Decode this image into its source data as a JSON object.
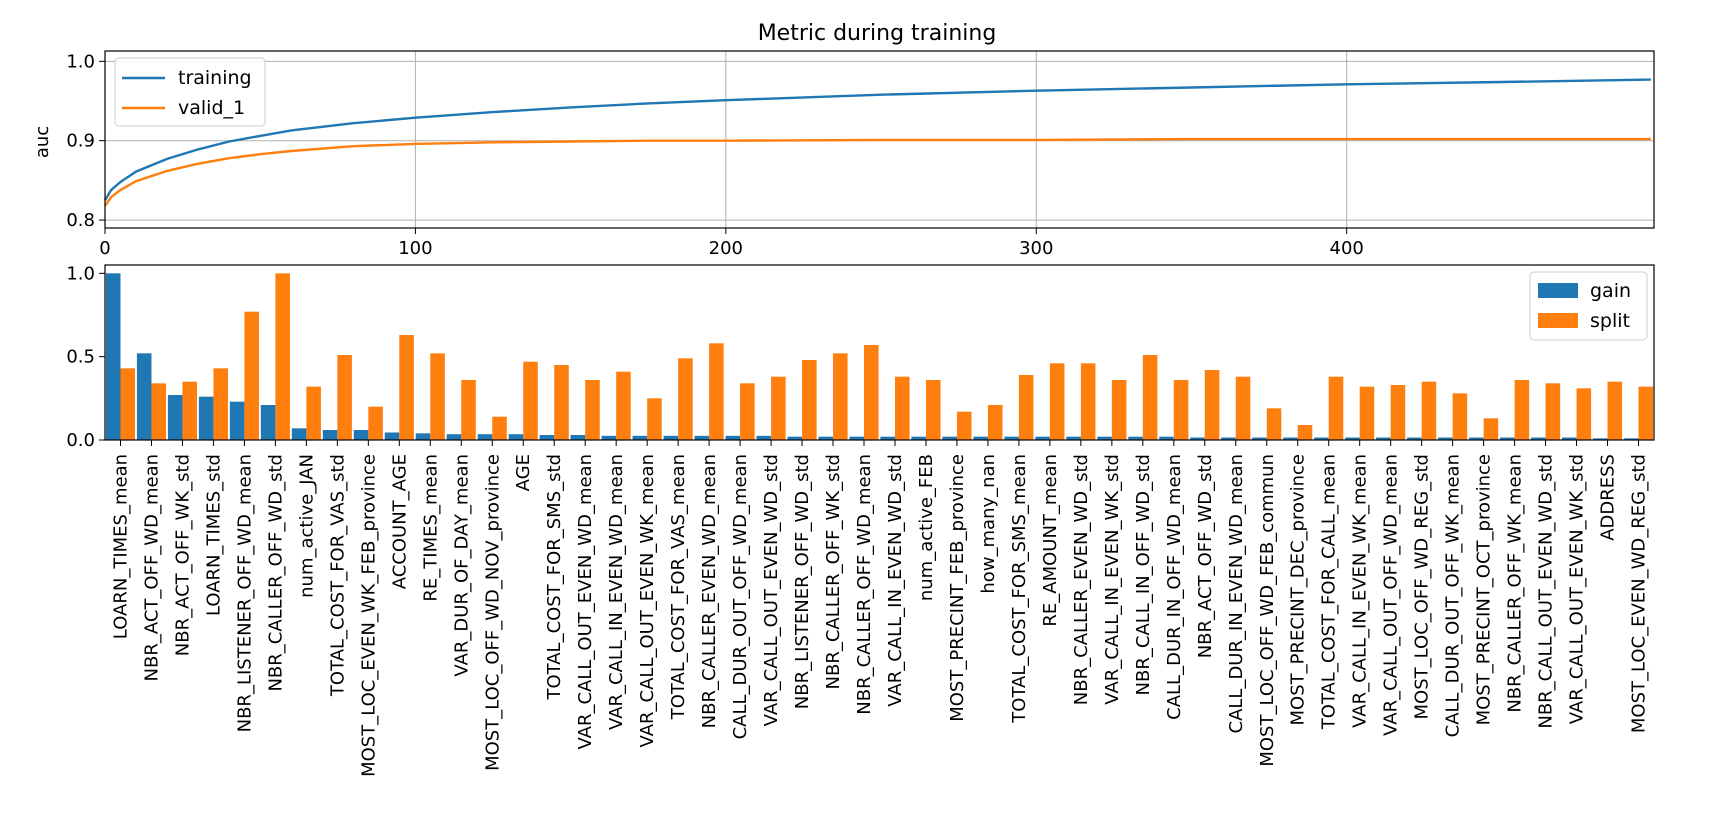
{
  "chart_data": [
    {
      "type": "line",
      "title": "Metric during training",
      "xlabel": "",
      "ylabel": "auc",
      "xlim": [
        0,
        499
      ],
      "ylim": [
        0.79,
        1.013
      ],
      "xticks": [
        0,
        100,
        200,
        300,
        400
      ],
      "yticks": [
        0.8,
        0.9,
        1.0
      ],
      "ytick_labels": [
        "0.8",
        "0.9",
        "1.0"
      ],
      "grid": true,
      "legend_position": "upper-left",
      "series": [
        {
          "name": "training",
          "color": "#1f77b4",
          "x": [
            0,
            2,
            5,
            10,
            20,
            30,
            40,
            50,
            60,
            80,
            100,
            125,
            150,
            175,
            200,
            250,
            300,
            350,
            400,
            450,
            498
          ],
          "y": [
            0.825,
            0.838,
            0.848,
            0.861,
            0.877,
            0.889,
            0.899,
            0.906,
            0.913,
            0.922,
            0.929,
            0.936,
            0.942,
            0.947,
            0.951,
            0.958,
            0.963,
            0.967,
            0.971,
            0.974,
            0.977
          ]
        },
        {
          "name": "valid_1",
          "color": "#ff7f0e",
          "x": [
            0,
            2,
            5,
            10,
            20,
            30,
            40,
            50,
            60,
            80,
            100,
            125,
            150,
            175,
            200,
            250,
            300,
            350,
            400,
            450,
            498
          ],
          "y": [
            0.818,
            0.829,
            0.838,
            0.849,
            0.862,
            0.871,
            0.878,
            0.883,
            0.887,
            0.893,
            0.896,
            0.898,
            0.899,
            0.9,
            0.9,
            0.901,
            0.901,
            0.902,
            0.902,
            0.902,
            0.902
          ]
        }
      ]
    },
    {
      "type": "bar",
      "title": "",
      "xlabel": "",
      "ylabel": "",
      "ylim": [
        0,
        1.05
      ],
      "yticks": [
        0.0,
        0.5,
        1.0
      ],
      "ytick_labels": [
        "0.0",
        "0.5",
        "1.0"
      ],
      "grid": false,
      "legend_position": "upper-right",
      "categories": [
        "LOARN_TIMES_mean",
        "NBR_ACT_OFF_WD_mean",
        "NBR_ACT_OFF_WK_std",
        "LOARN_TIMES_std",
        "NBR_LISTENER_OFF_WD_mean",
        "NBR_CALLER_OFF_WD_std",
        "num_active_JAN",
        "TOTAL_COST_FOR_VAS_std",
        "MOST_LOC_EVEN_WK_FEB_province",
        "ACCOUNT_AGE",
        "RE_TIMES_mean",
        "VAR_DUR_OF_DAY_mean",
        "MOST_LOC_OFF_WD_NOV_province",
        "AGE",
        "TOTAL_COST_FOR_SMS_std",
        "VAR_CALL_OUT_EVEN_WD_mean",
        "VAR_CALL_IN_EVEN_WD_mean",
        "VAR_CALL_OUT_EVEN_WK_mean",
        "TOTAL_COST_FOR_VAS_mean",
        "NBR_CALLER_EVEN_WD_mean",
        "CALL_DUR_OUT_OFF_WD_mean",
        "VAR_CALL_OUT_EVEN_WD_std",
        "NBR_LISTENER_OFF_WD_std",
        "NBR_CALLER_OFF_WK_std",
        "NBR_CALLER_OFF_WD_mean",
        "VAR_CALL_IN_EVEN_WD_std",
        "num_active_FEB",
        "MOST_PRECINT_FEB_province",
        "how_many_nan",
        "TOTAL_COST_FOR_SMS_mean",
        "RE_AMOUNT_mean",
        "NBR_CALLER_EVEN_WD_std",
        "VAR_CALL_IN_EVEN_WK_std",
        "NBR_CALL_IN_OFF_WD_std",
        "CALL_DUR_IN_OFF_WD_mean",
        "NBR_ACT_OFF_WD_std",
        "CALL_DUR_IN_EVEN_WD_mean",
        "MOST_LOC_OFF_WD_FEB_commun",
        "MOST_PRECINT_DEC_province",
        "TOTAL_COST_FOR_CALL_mean",
        "VAR_CALL_IN_EVEN_WK_mean",
        "VAR_CALL_OUT_OFF_WD_mean",
        "MOST_LOC_OFF_WD_REG_std",
        "CALL_DUR_OUT_OFF_WK_mean",
        "MOST_PRECINT_OCT_province",
        "NBR_CALLER_OFF_WK_mean",
        "NBR_CALL_OUT_EVEN_WD_std",
        "VAR_CALL_OUT_EVEN_WK_std",
        "ADDRESS",
        "MOST_LOC_EVEN_WD_REG_std"
      ],
      "series": [
        {
          "name": "gain",
          "color": "#1f77b4",
          "values": [
            1.0,
            0.52,
            0.27,
            0.26,
            0.23,
            0.21,
            0.07,
            0.06,
            0.06,
            0.045,
            0.04,
            0.035,
            0.035,
            0.035,
            0.03,
            0.03,
            0.025,
            0.025,
            0.025,
            0.025,
            0.025,
            0.025,
            0.02,
            0.02,
            0.02,
            0.02,
            0.02,
            0.02,
            0.02,
            0.02,
            0.02,
            0.02,
            0.02,
            0.02,
            0.02,
            0.015,
            0.015,
            0.015,
            0.015,
            0.015,
            0.015,
            0.015,
            0.015,
            0.015,
            0.015,
            0.015,
            0.015,
            0.015,
            0.01,
            0.01
          ]
        },
        {
          "name": "split",
          "color": "#ff7f0e",
          "values": [
            0.43,
            0.34,
            0.35,
            0.43,
            0.77,
            1.0,
            0.32,
            0.51,
            0.2,
            0.63,
            0.52,
            0.36,
            0.14,
            0.47,
            0.45,
            0.36,
            0.41,
            0.25,
            0.49,
            0.58,
            0.34,
            0.38,
            0.48,
            0.52,
            0.57,
            0.38,
            0.36,
            0.17,
            0.21,
            0.39,
            0.46,
            0.46,
            0.36,
            0.51,
            0.36,
            0.42,
            0.38,
            0.19,
            0.09,
            0.38,
            0.32,
            0.33,
            0.35,
            0.28,
            0.13,
            0.36,
            0.34,
            0.31,
            0.35,
            0.32
          ]
        }
      ]
    }
  ]
}
